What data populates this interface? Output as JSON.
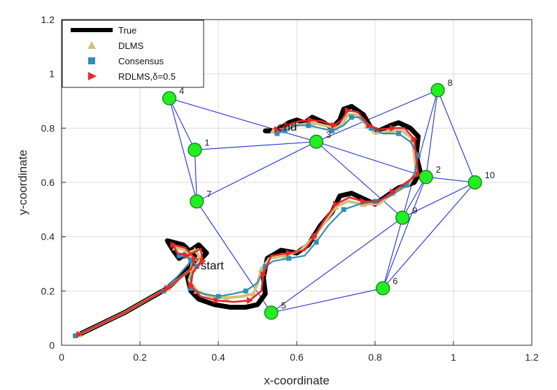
{
  "chart_data": {
    "type": "line",
    "xlabel": "x-coordinate",
    "ylabel": "y-coordinate",
    "xlim": [
      0,
      1.2
    ],
    "ylim": [
      0,
      1.2
    ],
    "xticks": [
      "0",
      "0.2",
      "0.4",
      "0.6",
      "0.8",
      "1",
      "1.2"
    ],
    "yticks": [
      "0",
      "0.2",
      "0.4",
      "0.6",
      "0.8",
      "1",
      "1.2"
    ],
    "grid": true,
    "legend_position": "top-left",
    "legend": [
      {
        "label": "True",
        "marker": "line",
        "color": "#000000"
      },
      {
        "label": "DLMS",
        "marker": "triangle-up",
        "color": "#d4c07a"
      },
      {
        "label": "Consensus",
        "marker": "square",
        "color": "#2f8fb3"
      },
      {
        "label": "RDLMS,δ=0.5",
        "marker": "triangle-right",
        "color": "#e8262a"
      }
    ],
    "nodes": [
      {
        "id": "1",
        "x": 0.34,
        "y": 0.72
      },
      {
        "id": "2",
        "x": 0.93,
        "y": 0.62
      },
      {
        "id": "3",
        "x": 0.65,
        "y": 0.75
      },
      {
        "id": "4",
        "x": 0.275,
        "y": 0.91
      },
      {
        "id": "5",
        "x": 0.535,
        "y": 0.12
      },
      {
        "id": "6",
        "x": 0.82,
        "y": 0.21
      },
      {
        "id": "7",
        "x": 0.345,
        "y": 0.53
      },
      {
        "id": "8",
        "x": 0.96,
        "y": 0.94
      },
      {
        "id": "9",
        "x": 0.87,
        "y": 0.47
      },
      {
        "id": "10",
        "x": 1.055,
        "y": 0.6
      }
    ],
    "edges": [
      [
        "4",
        "1"
      ],
      [
        "4",
        "7"
      ],
      [
        "4",
        "3"
      ],
      [
        "1",
        "7"
      ],
      [
        "1",
        "3"
      ],
      [
        "7",
        "3"
      ],
      [
        "7",
        "5"
      ],
      [
        "3",
        "8"
      ],
      [
        "3",
        "2"
      ],
      [
        "3",
        "9"
      ],
      [
        "8",
        "2"
      ],
      [
        "8",
        "9"
      ],
      [
        "8",
        "10"
      ],
      [
        "2",
        "9"
      ],
      [
        "2",
        "10"
      ],
      [
        "9",
        "10"
      ],
      [
        "9",
        "5"
      ],
      [
        "9",
        "6"
      ],
      [
        "2",
        "6"
      ],
      [
        "10",
        "6"
      ],
      [
        "6",
        "5"
      ]
    ],
    "annotations": [
      {
        "text": "start",
        "x": 0.355,
        "y": 0.28
      },
      {
        "text": "end",
        "x": 0.55,
        "y": 0.79
      }
    ],
    "series": [
      {
        "name": "True",
        "color": "#000000",
        "points": [
          [
            0.045,
            0.04
          ],
          [
            0.16,
            0.12
          ],
          [
            0.27,
            0.21
          ],
          [
            0.33,
            0.29
          ],
          [
            0.34,
            0.33
          ],
          [
            0.31,
            0.37
          ],
          [
            0.27,
            0.385
          ],
          [
            0.285,
            0.35
          ],
          [
            0.3,
            0.32
          ],
          [
            0.35,
            0.37
          ],
          [
            0.37,
            0.34
          ],
          [
            0.345,
            0.3
          ],
          [
            0.32,
            0.26
          ],
          [
            0.33,
            0.2
          ],
          [
            0.35,
            0.17
          ],
          [
            0.39,
            0.15
          ],
          [
            0.43,
            0.14
          ],
          [
            0.47,
            0.14
          ],
          [
            0.5,
            0.15
          ],
          [
            0.52,
            0.19
          ],
          [
            0.515,
            0.25
          ],
          [
            0.525,
            0.32
          ],
          [
            0.56,
            0.35
          ],
          [
            0.6,
            0.34
          ],
          [
            0.63,
            0.37
          ],
          [
            0.66,
            0.44
          ],
          [
            0.69,
            0.49
          ],
          [
            0.71,
            0.55
          ],
          [
            0.74,
            0.56
          ],
          [
            0.77,
            0.54
          ],
          [
            0.8,
            0.52
          ],
          [
            0.83,
            0.55
          ],
          [
            0.86,
            0.58
          ],
          [
            0.9,
            0.6
          ],
          [
            0.915,
            0.64
          ],
          [
            0.905,
            0.7
          ],
          [
            0.91,
            0.77
          ],
          [
            0.89,
            0.8
          ],
          [
            0.86,
            0.82
          ],
          [
            0.84,
            0.81
          ],
          [
            0.81,
            0.79
          ],
          [
            0.79,
            0.8
          ],
          [
            0.77,
            0.85
          ],
          [
            0.74,
            0.88
          ],
          [
            0.72,
            0.87
          ],
          [
            0.71,
            0.83
          ],
          [
            0.69,
            0.8
          ],
          [
            0.67,
            0.82
          ],
          [
            0.64,
            0.84
          ],
          [
            0.62,
            0.82
          ],
          [
            0.6,
            0.83
          ],
          [
            0.58,
            0.82
          ],
          [
            0.56,
            0.8
          ],
          [
            0.54,
            0.79
          ],
          [
            0.52,
            0.79
          ]
        ]
      },
      {
        "name": "DLMS",
        "color": "#d4c07a",
        "points": [
          [
            0.045,
            0.04
          ],
          [
            0.16,
            0.12
          ],
          [
            0.27,
            0.21
          ],
          [
            0.33,
            0.28
          ],
          [
            0.335,
            0.32
          ],
          [
            0.31,
            0.355
          ],
          [
            0.29,
            0.36
          ],
          [
            0.3,
            0.33
          ],
          [
            0.34,
            0.35
          ],
          [
            0.355,
            0.32
          ],
          [
            0.335,
            0.28
          ],
          [
            0.325,
            0.24
          ],
          [
            0.345,
            0.2
          ],
          [
            0.38,
            0.18
          ],
          [
            0.42,
            0.175
          ],
          [
            0.46,
            0.18
          ],
          [
            0.49,
            0.19
          ],
          [
            0.5,
            0.23
          ],
          [
            0.51,
            0.28
          ],
          [
            0.53,
            0.32
          ],
          [
            0.57,
            0.33
          ],
          [
            0.61,
            0.35
          ],
          [
            0.645,
            0.4
          ],
          [
            0.675,
            0.46
          ],
          [
            0.7,
            0.51
          ],
          [
            0.73,
            0.53
          ],
          [
            0.77,
            0.52
          ],
          [
            0.81,
            0.52
          ],
          [
            0.845,
            0.56
          ],
          [
            0.885,
            0.59
          ],
          [
            0.905,
            0.64
          ],
          [
            0.9,
            0.7
          ],
          [
            0.895,
            0.76
          ],
          [
            0.87,
            0.79
          ],
          [
            0.84,
            0.79
          ],
          [
            0.8,
            0.78
          ],
          [
            0.78,
            0.81
          ],
          [
            0.75,
            0.85
          ],
          [
            0.73,
            0.85
          ],
          [
            0.72,
            0.82
          ],
          [
            0.7,
            0.8
          ],
          [
            0.67,
            0.81
          ],
          [
            0.64,
            0.82
          ],
          [
            0.6,
            0.81
          ],
          [
            0.57,
            0.8
          ],
          [
            0.54,
            0.79
          ]
        ]
      },
      {
        "name": "Consensus",
        "color": "#2f8fb3",
        "points": [
          [
            0.035,
            0.035
          ],
          [
            0.16,
            0.12
          ],
          [
            0.26,
            0.2
          ],
          [
            0.3,
            0.26
          ],
          [
            0.33,
            0.31
          ],
          [
            0.31,
            0.34
          ],
          [
            0.3,
            0.33
          ],
          [
            0.33,
            0.32
          ],
          [
            0.345,
            0.29
          ],
          [
            0.33,
            0.25
          ],
          [
            0.33,
            0.21
          ],
          [
            0.36,
            0.19
          ],
          [
            0.4,
            0.18
          ],
          [
            0.44,
            0.19
          ],
          [
            0.47,
            0.2
          ],
          [
            0.5,
            0.23
          ],
          [
            0.52,
            0.29
          ],
          [
            0.54,
            0.31
          ],
          [
            0.58,
            0.32
          ],
          [
            0.62,
            0.33
          ],
          [
            0.65,
            0.38
          ],
          [
            0.68,
            0.44
          ],
          [
            0.72,
            0.5
          ],
          [
            0.76,
            0.52
          ],
          [
            0.8,
            0.53
          ],
          [
            0.84,
            0.55
          ],
          [
            0.88,
            0.59
          ],
          [
            0.9,
            0.63
          ],
          [
            0.91,
            0.7
          ],
          [
            0.89,
            0.75
          ],
          [
            0.86,
            0.78
          ],
          [
            0.82,
            0.78
          ],
          [
            0.79,
            0.8
          ],
          [
            0.76,
            0.84
          ],
          [
            0.74,
            0.84
          ],
          [
            0.72,
            0.81
          ],
          [
            0.69,
            0.79
          ],
          [
            0.66,
            0.8
          ],
          [
            0.63,
            0.81
          ],
          [
            0.6,
            0.81
          ],
          [
            0.57,
            0.79
          ],
          [
            0.55,
            0.78
          ]
        ]
      },
      {
        "name": "RDLMS,δ=0.5",
        "color": "#e8262a",
        "points": [
          [
            0.045,
            0.04
          ],
          [
            0.16,
            0.12
          ],
          [
            0.27,
            0.21
          ],
          [
            0.33,
            0.28
          ],
          [
            0.34,
            0.32
          ],
          [
            0.315,
            0.36
          ],
          [
            0.285,
            0.37
          ],
          [
            0.295,
            0.34
          ],
          [
            0.32,
            0.33
          ],
          [
            0.355,
            0.355
          ],
          [
            0.36,
            0.31
          ],
          [
            0.335,
            0.27
          ],
          [
            0.33,
            0.22
          ],
          [
            0.355,
            0.18
          ],
          [
            0.395,
            0.165
          ],
          [
            0.44,
            0.16
          ],
          [
            0.48,
            0.165
          ],
          [
            0.51,
            0.2
          ],
          [
            0.515,
            0.26
          ],
          [
            0.535,
            0.33
          ],
          [
            0.58,
            0.34
          ],
          [
            0.62,
            0.35
          ],
          [
            0.645,
            0.4
          ],
          [
            0.67,
            0.46
          ],
          [
            0.7,
            0.52
          ],
          [
            0.735,
            0.545
          ],
          [
            0.77,
            0.53
          ],
          [
            0.81,
            0.53
          ],
          [
            0.845,
            0.565
          ],
          [
            0.88,
            0.6
          ],
          [
            0.91,
            0.63
          ],
          [
            0.905,
            0.69
          ],
          [
            0.9,
            0.76
          ],
          [
            0.875,
            0.8
          ],
          [
            0.845,
            0.8
          ],
          [
            0.81,
            0.795
          ],
          [
            0.785,
            0.81
          ],
          [
            0.755,
            0.86
          ],
          [
            0.73,
            0.865
          ],
          [
            0.715,
            0.83
          ],
          [
            0.695,
            0.81
          ],
          [
            0.665,
            0.825
          ],
          [
            0.635,
            0.83
          ],
          [
            0.605,
            0.825
          ],
          [
            0.575,
            0.81
          ],
          [
            0.55,
            0.795
          ]
        ]
      }
    ]
  }
}
